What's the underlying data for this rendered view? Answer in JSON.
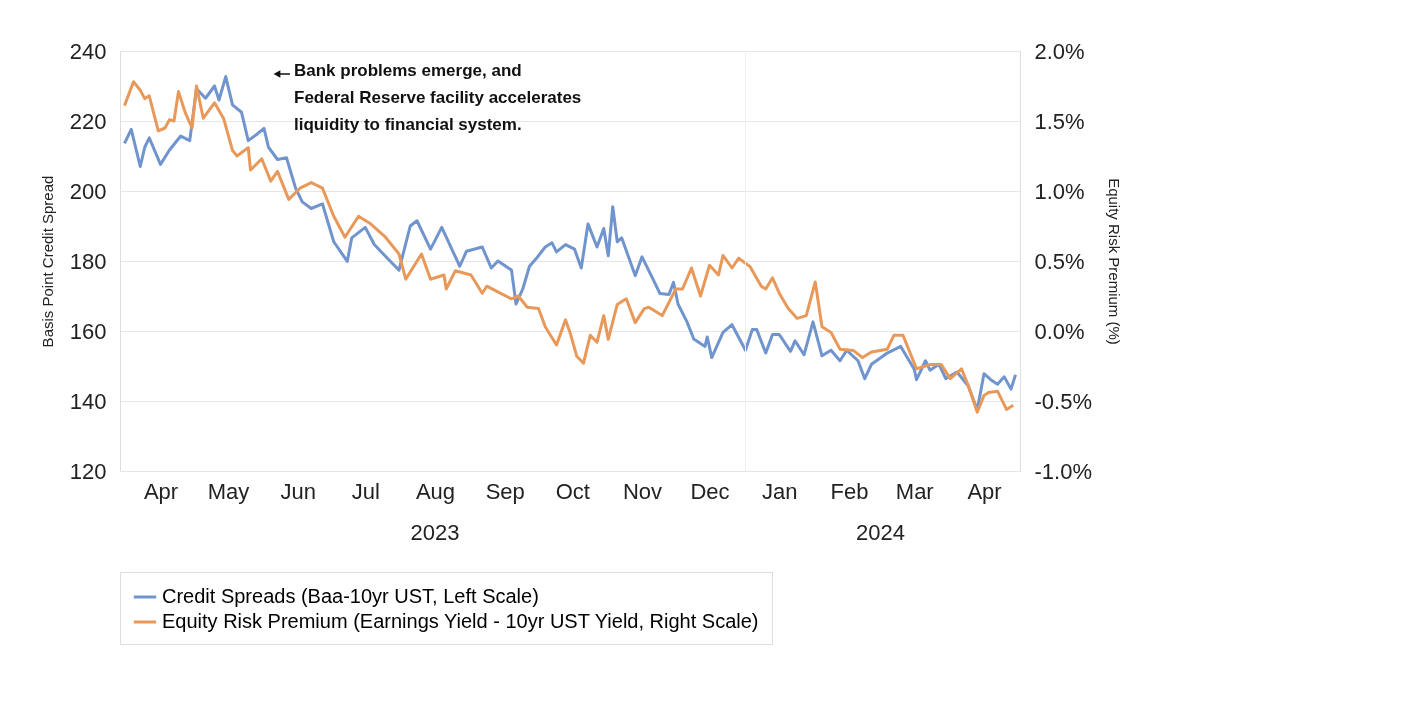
{
  "chart_data": {
    "type": "line",
    "ylabel": "Basis Point Credit Spread",
    "y2label": "Equity Risk Premium (%)",
    "xlim": [
      "2023-03-28",
      "2024-05-01"
    ],
    "xticks": [
      {
        "value": "2023-04-15",
        "label": "Apr"
      },
      {
        "value": "2023-05-15",
        "label": "May"
      },
      {
        "value": "2023-06-15",
        "label": "Jun"
      },
      {
        "value": "2023-07-15",
        "label": "Jul"
      },
      {
        "value": "2023-08-15",
        "label": "Aug"
      },
      {
        "value": "2023-09-15",
        "label": "Sep"
      },
      {
        "value": "2023-10-15",
        "label": "Oct"
      },
      {
        "value": "2023-11-15",
        "label": "Nov"
      },
      {
        "value": "2023-12-15",
        "label": "Dec"
      },
      {
        "value": "2024-01-15",
        "label": "Jan"
      },
      {
        "value": "2024-02-15",
        "label": "Feb"
      },
      {
        "value": "2024-03-15",
        "label": "Mar"
      },
      {
        "value": "2024-04-15",
        "label": "Apr"
      }
    ],
    "ylim": [
      120,
      240
    ],
    "yticks": [
      120,
      140,
      160,
      180,
      200,
      220,
      240
    ],
    "y2lim": [
      -1.0,
      2.0
    ],
    "y2ticks": [
      {
        "value": -1.0,
        "label": "-1.0%"
      },
      {
        "value": -0.5,
        "label": "-0.5%"
      },
      {
        "value": 0.0,
        "label": "0.0%"
      },
      {
        "value": 0.5,
        "label": "0.5%"
      },
      {
        "value": 1.0,
        "label": "1.0%"
      },
      {
        "value": 1.5,
        "label": "1.5%"
      },
      {
        "value": 2.0,
        "label": "2.0%"
      }
    ],
    "grid": "y",
    "legend": "bottom",
    "line_style": "solid",
    "ref_lines": [
      {
        "axis": "x",
        "value": "2023-12-31",
        "color": "#eeeeee"
      }
    ],
    "annotations": [
      "Bank problems emerge, and\nFederal Reserve facility accelerates\nliquidity to financial system.",
      "2023",
      "2024"
    ],
    "series": [
      {
        "name": "Credit Spreads (Baa-10yr UST, Left Scale)",
        "color": "#7094cd",
        "x": [
          "2023-03-30",
          "2023-04-02",
          "2023-04-06",
          "2023-04-08",
          "2023-04-10",
          "2023-04-15",
          "2023-04-19",
          "2023-04-24",
          "2023-04-28",
          "2023-05-01",
          "2023-05-05",
          "2023-05-09",
          "2023-05-11",
          "2023-05-14",
          "2023-05-17",
          "2023-05-21",
          "2023-05-24",
          "2023-05-28",
          "2023-05-31",
          "2023-06-02",
          "2023-06-06",
          "2023-06-10",
          "2023-06-14",
          "2023-06-17",
          "2023-06-21",
          "2023-06-26",
          "2023-07-01",
          "2023-07-07",
          "2023-07-09",
          "2023-07-15",
          "2023-07-19",
          "2023-07-26",
          "2023-07-30",
          "2023-08-04",
          "2023-08-07",
          "2023-08-13",
          "2023-08-18",
          "2023-08-26",
          "2023-08-29",
          "2023-09-05",
          "2023-09-09",
          "2023-09-12",
          "2023-09-18",
          "2023-09-20",
          "2023-09-23",
          "2023-09-26",
          "2023-09-29",
          "2023-10-03",
          "2023-10-06",
          "2023-10-08",
          "2023-10-12",
          "2023-10-16",
          "2023-10-19",
          "2023-10-22",
          "2023-10-26",
          "2023-10-29",
          "2023-10-31",
          "2023-11-02",
          "2023-11-04",
          "2023-11-06",
          "2023-11-12",
          "2023-11-15",
          "2023-11-20",
          "2023-11-23",
          "2023-11-27",
          "2023-11-29",
          "2023-12-01",
          "2023-12-05",
          "2023-12-08",
          "2023-12-13",
          "2023-12-14",
          "2023-12-16",
          "2023-12-21",
          "2023-12-25",
          "2023-12-31",
          "2024-01-03",
          "2024-01-05",
          "2024-01-09",
          "2024-01-12",
          "2024-01-15",
          "2024-01-20",
          "2024-01-22",
          "2024-01-26",
          "2024-01-30",
          "2024-02-03",
          "2024-02-07",
          "2024-02-11",
          "2024-02-14",
          "2024-02-19",
          "2024-02-22",
          "2024-02-25",
          "2024-03-03",
          "2024-03-09",
          "2024-03-15",
          "2024-03-16",
          "2024-03-20",
          "2024-03-22",
          "2024-03-26",
          "2024-03-29",
          "2024-04-03",
          "2024-04-08",
          "2024-04-12",
          "2024-04-15",
          "2024-04-18",
          "2024-04-21",
          "2024-04-24",
          "2024-04-27",
          "2024-04-29"
        ],
        "values": [
          213.6,
          217.6,
          207,
          212.5,
          215.2,
          207.6,
          211.7,
          215.7,
          214.4,
          229.2,
          226.5,
          230,
          226,
          232.7,
          224.6,
          222.5,
          214.4,
          216.3,
          217.9,
          212.5,
          209,
          209.5,
          200.9,
          196.9,
          195,
          196.3,
          185.5,
          179.9,
          186.6,
          189.6,
          184.7,
          180,
          177.4,
          190,
          191.5,
          183.4,
          189.6,
          178.5,
          182.8,
          184,
          178,
          180,
          177.4,
          167.7,
          172,
          178.5,
          180.7,
          184,
          185.2,
          182.6,
          184.7,
          183.4,
          178,
          190.6,
          184,
          189.3,
          181.5,
          195.5,
          185.5,
          186.6,
          175.8,
          181.2,
          174.7,
          170.7,
          170.4,
          173.9,
          167.7,
          162.6,
          157.7,
          155.6,
          158.3,
          152.4,
          159.6,
          161.8,
          154.5,
          160.4,
          160.4,
          153.7,
          159,
          159,
          154.2,
          157.2,
          153.2,
          162.6,
          152.9,
          154.5,
          151.5,
          154.5,
          151.5,
          146.4,
          150.5,
          153.7,
          155.6,
          149.1,
          146.1,
          151.5,
          148.8,
          150.5,
          146.4,
          148.3,
          144.3,
          137.5,
          147.8,
          146.1,
          144.8,
          146.9,
          143.4,
          147.5
        ]
      },
      {
        "name": "Equity Risk Premium (Earnings Yield - 10yr UST Yield, Right Scale)",
        "color": "#e8995a",
        "axis": "y2",
        "x": [
          "2023-03-30",
          "2023-04-03",
          "2023-04-06",
          "2023-04-08",
          "2023-04-10",
          "2023-04-14",
          "2023-04-17",
          "2023-04-19",
          "2023-04-21",
          "2023-04-23",
          "2023-04-26",
          "2023-04-29",
          "2023-05-01",
          "2023-05-04",
          "2023-05-09",
          "2023-05-13",
          "2023-05-17",
          "2023-05-19",
          "2023-05-24",
          "2023-05-25",
          "2023-05-30",
          "2023-06-03",
          "2023-06-06",
          "2023-06-11",
          "2023-06-16",
          "2023-06-21",
          "2023-06-26",
          "2023-07-01",
          "2023-07-06",
          "2023-07-12",
          "2023-07-17",
          "2023-07-24",
          "2023-07-30",
          "2023-08-02",
          "2023-08-09",
          "2023-08-13",
          "2023-08-19",
          "2023-08-20",
          "2023-08-24",
          "2023-08-31",
          "2023-09-05",
          "2023-09-07",
          "2023-09-13",
          "2023-09-18",
          "2023-09-21",
          "2023-09-25",
          "2023-09-30",
          "2023-10-03",
          "2023-10-08",
          "2023-10-12",
          "2023-10-14",
          "2023-10-17",
          "2023-10-20",
          "2023-10-23",
          "2023-10-26",
          "2023-10-29",
          "2023-10-31",
          "2023-11-04",
          "2023-11-08",
          "2023-11-12",
          "2023-11-16",
          "2023-11-18",
          "2023-11-24",
          "2023-11-30",
          "2023-12-03",
          "2023-12-07",
          "2023-12-11",
          "2023-12-15",
          "2023-12-19",
          "2023-12-21",
          "2023-12-25",
          "2023-12-28",
          "2024-01-02",
          "2024-01-07",
          "2024-01-09",
          "2024-01-12",
          "2024-01-15",
          "2024-01-19",
          "2024-01-23",
          "2024-01-27",
          "2024-01-31",
          "2024-02-03",
          "2024-02-07",
          "2024-02-11",
          "2024-02-17",
          "2024-02-21",
          "2024-02-25",
          "2024-03-03",
          "2024-03-06",
          "2024-03-10",
          "2024-03-14",
          "2024-03-16",
          "2024-03-22",
          "2024-03-27",
          "2024-03-31",
          "2024-04-05",
          "2024-04-08",
          "2024-04-12",
          "2024-04-15",
          "2024-04-17",
          "2024-04-21",
          "2024-04-25",
          "2024-04-28"
        ],
        "values": [
          1.61,
          1.78,
          1.72,
          1.66,
          1.68,
          1.43,
          1.45,
          1.51,
          1.5,
          1.71,
          1.56,
          1.45,
          1.75,
          1.52,
          1.63,
          1.52,
          1.29,
          1.25,
          1.31,
          1.15,
          1.23,
          1.07,
          1.14,
          0.94,
          1.02,
          1.06,
          1.02,
          0.82,
          0.67,
          0.82,
          0.77,
          0.67,
          0.55,
          0.37,
          0.55,
          0.37,
          0.4,
          0.3,
          0.43,
          0.4,
          0.27,
          0.32,
          0.27,
          0.23,
          0.25,
          0.17,
          0.16,
          0.03,
          -0.1,
          0.08,
          -0.01,
          -0.18,
          -0.23,
          -0.03,
          -0.08,
          0.11,
          -0.06,
          0.19,
          0.23,
          0.06,
          0.16,
          0.17,
          0.11,
          0.3,
          0.3,
          0.45,
          0.25,
          0.47,
          0.4,
          0.54,
          0.45,
          0.52,
          0.46,
          0.32,
          0.3,
          0.38,
          0.27,
          0.16,
          0.09,
          0.11,
          0.35,
          0.03,
          -0.01,
          -0.13,
          -0.14,
          -0.19,
          -0.15,
          -0.13,
          -0.03,
          -0.03,
          -0.19,
          -0.27,
          -0.24,
          -0.24,
          -0.34,
          -0.27,
          -0.39,
          -0.58,
          -0.46,
          -0.44,
          -0.43,
          -0.56,
          -0.53
        ]
      }
    ]
  }
}
